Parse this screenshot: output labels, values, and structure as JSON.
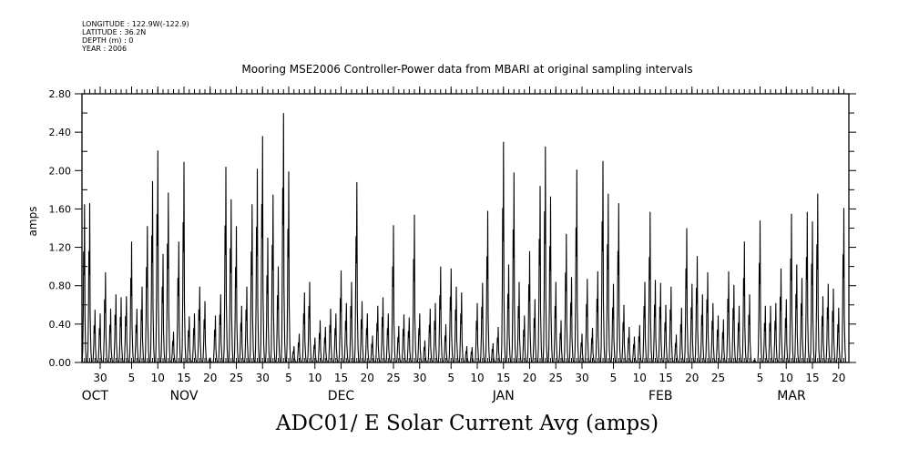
{
  "header": {
    "longitude": "LONGITUDE : 122.9W(-122.9)",
    "latitude": "LATITUDE : 36.2N",
    "depth": "DEPTH (m) : 0",
    "year": "YEAR : 2006"
  },
  "chart_data": {
    "type": "line",
    "title": "Mooring MSE2006 Controller-Power data from MBARI at original sampling intervals",
    "xlabel": "",
    "ylabel": "amps",
    "bottom_title": "ADC01/ E Solar Current Avg (amps)",
    "ylim": [
      0,
      2.8
    ],
    "yticks": [
      "0.00",
      "0.40",
      "0.80",
      "1.20",
      "1.60",
      "2.00",
      "2.40",
      "2.80"
    ],
    "x_units": "days since Oct 30",
    "xlim": [
      -3.5,
      143
    ],
    "x_start": -3,
    "x_step": 1,
    "xticks": [
      {
        "d": 0,
        "label": "30"
      },
      {
        "d": 6,
        "label": "5"
      },
      {
        "d": 11,
        "label": "10"
      },
      {
        "d": 16,
        "label": "15"
      },
      {
        "d": 21,
        "label": "20"
      },
      {
        "d": 26,
        "label": "25"
      },
      {
        "d": 31,
        "label": "30"
      },
      {
        "d": 36,
        "label": "5"
      },
      {
        "d": 41,
        "label": "10"
      },
      {
        "d": 46,
        "label": "15"
      },
      {
        "d": 51,
        "label": "20"
      },
      {
        "d": 56,
        "label": "25"
      },
      {
        "d": 61,
        "label": "30"
      },
      {
        "d": 67,
        "label": "5"
      },
      {
        "d": 72,
        "label": "10"
      },
      {
        "d": 77,
        "label": "15"
      },
      {
        "d": 82,
        "label": "20"
      },
      {
        "d": 87,
        "label": "25"
      },
      {
        "d": 92,
        "label": "30"
      },
      {
        "d": 98,
        "label": "5"
      },
      {
        "d": 103,
        "label": "10"
      },
      {
        "d": 108,
        "label": "15"
      },
      {
        "d": 113,
        "label": "20"
      },
      {
        "d": 118,
        "label": "25"
      },
      {
        "d": 126,
        "label": "5"
      },
      {
        "d": 131,
        "label": "10"
      },
      {
        "d": 136,
        "label": "15"
      },
      {
        "d": 141,
        "label": "20"
      }
    ],
    "months": [
      {
        "d": -1,
        "label": "OCT"
      },
      {
        "d": 16,
        "label": "NOV"
      },
      {
        "d": 46,
        "label": "DEC"
      },
      {
        "d": 77,
        "label": "JAN"
      },
      {
        "d": 107,
        "label": "FEB"
      },
      {
        "d": 132,
        "label": "MAR"
      }
    ],
    "series": [
      {
        "name": "Solar Current Avg (daily peak)",
        "values": [
          1.65,
          1.66,
          0.55,
          0.51,
          0.94,
          0.56,
          0.71,
          0.68,
          0.69,
          1.26,
          0.56,
          0.79,
          1.42,
          1.89,
          2.21,
          1.13,
          1.77,
          0.32,
          1.26,
          2.09,
          0.48,
          0.51,
          0.79,
          0.64,
          0.05,
          0.49,
          0.71,
          2.04,
          1.7,
          1.42,
          0.59,
          0.79,
          1.65,
          2.02,
          2.36,
          1.3,
          1.75,
          1.0,
          2.6,
          1.99,
          0.17,
          0.3,
          0.73,
          0.84,
          0.26,
          0.44,
          0.37,
          0.56,
          0.51,
          0.96,
          0.62,
          0.84,
          1.88,
          0.64,
          0.51,
          0.28,
          0.59,
          0.68,
          0.51,
          1.43,
          0.38,
          0.5,
          0.47,
          1.54,
          0.51,
          0.23,
          0.56,
          0.62,
          1.0,
          0.4,
          0.98,
          0.79,
          0.73,
          0.17,
          0.16,
          0.62,
          0.83,
          1.58,
          0.2,
          0.37,
          2.3,
          1.02,
          1.98,
          0.84,
          0.49,
          1.16,
          0.66,
          1.84,
          2.25,
          1.73,
          0.84,
          0.44,
          1.34,
          0.89,
          2.01,
          0.3,
          0.87,
          0.36,
          0.95,
          2.1,
          1.76,
          0.82,
          1.66,
          0.6,
          0.37,
          0.27,
          0.39,
          0.84,
          1.57,
          0.86,
          0.83,
          0.6,
          0.79,
          0.29,
          0.57,
          1.4,
          0.82,
          1.11,
          0.71,
          0.94,
          0.62,
          0.49,
          0.45,
          0.95,
          0.81,
          0.59,
          1.26,
          0.71,
          0.03,
          1.48,
          0.59,
          0.59,
          0.62,
          0.98,
          0.66,
          1.55,
          1.02,
          0.88,
          1.57,
          1.47,
          1.76,
          0.69,
          0.82,
          0.77,
          0.57,
          1.61
        ]
      }
    ]
  }
}
